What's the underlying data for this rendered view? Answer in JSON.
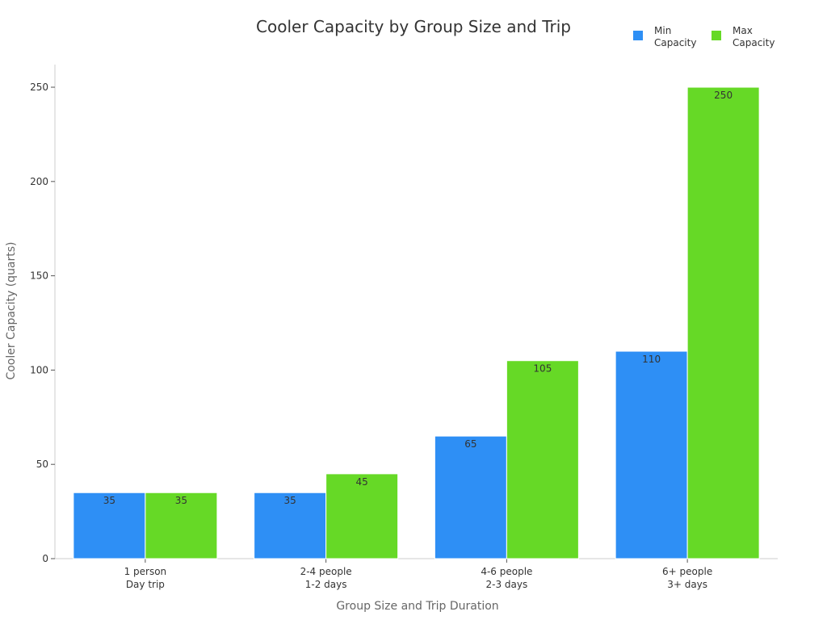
{
  "chart_data": {
    "type": "bar",
    "title": "Cooler Capacity by Group Size and Trip",
    "xlabel": "Group Size and Trip Duration",
    "ylabel": "Cooler Capacity (quarts)",
    "categories": [
      [
        "1 person",
        "Day trip"
      ],
      [
        "2-4 people",
        "1-2 days"
      ],
      [
        "4-6 people",
        "2-3 days"
      ],
      [
        "6+ people",
        "3+ days"
      ]
    ],
    "series": [
      {
        "name": "Min Capacity",
        "legend_lines": [
          "Min",
          "Capacity"
        ],
        "color": "#2e8ff5",
        "values": [
          35,
          35,
          65,
          110
        ]
      },
      {
        "name": "Max Capacity",
        "legend_lines": [
          "Max",
          "Capacity"
        ],
        "color": "#66d926",
        "values": [
          35,
          45,
          105,
          250
        ]
      }
    ],
    "ylim": [
      0,
      262
    ],
    "yticks": [
      0,
      50,
      100,
      150,
      200,
      250
    ],
    "grid": false,
    "legend_position": "top-right"
  }
}
